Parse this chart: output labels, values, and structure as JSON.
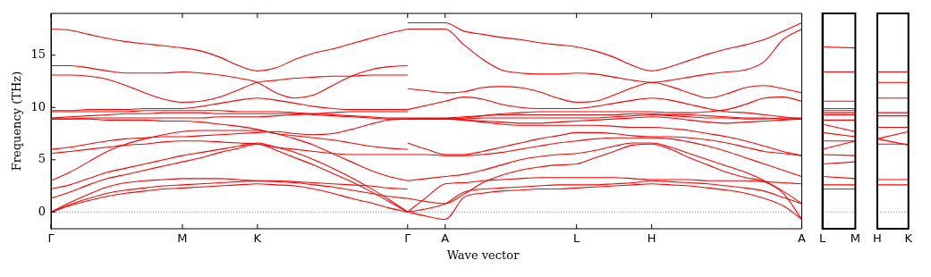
{
  "chart_data": [
    {
      "type": "line",
      "ylabel": "Frequency (THz)",
      "xlabel": "Wave vector",
      "categories": [
        "Γ",
        null,
        null,
        null,
        null,
        null,
        null,
        "M",
        null,
        null,
        null,
        "K",
        null,
        null,
        null,
        null,
        null,
        null,
        null,
        "Γ",
        null,
        "A",
        null,
        null,
        null,
        null,
        null,
        null,
        "L",
        null,
        null,
        null,
        "H",
        null,
        null,
        null,
        null,
        null,
        null,
        null,
        "A"
      ],
      "ylim": [
        -1.6,
        19.0
      ],
      "yticks": [
        0,
        5,
        10,
        15
      ],
      "ref_lines": [
        {
          "axis": "y",
          "value": 0,
          "color": "#5a5aff",
          "line_style": "dotted"
        }
      ],
      "series": [
        {
          "color": "#ff0000",
          "values": [
            0,
            0.6,
            1.1,
            1.5,
            1.8,
            2.0,
            2.2,
            2.3,
            2.4,
            2.5,
            2.6,
            2.7,
            2.6,
            2.5,
            2.2,
            1.8,
            1.3,
            0.9,
            0.4,
            0,
            null,
            null,
            null,
            null,
            null,
            null,
            null,
            null,
            null,
            null,
            null,
            null,
            null,
            null,
            null,
            null,
            null,
            null,
            null,
            null,
            null
          ]
        },
        {
          "color": "#ff0000",
          "values": [
            0,
            0.7,
            1.3,
            1.8,
            2.1,
            2.3,
            2.5,
            2.6,
            2.7,
            2.8,
            2.9,
            3.0,
            2.9,
            2.8,
            2.6,
            2.4,
            2.1,
            1.8,
            1.5,
            1.3,
            null,
            null,
            null,
            null,
            null,
            null,
            null,
            null,
            null,
            null,
            null,
            null,
            null,
            null,
            null,
            null,
            null,
            null,
            null,
            null,
            null
          ]
        },
        {
          "color": "#ff0000",
          "values": [
            0,
            0.9,
            1.7,
            2.4,
            2.8,
            3.0,
            3.1,
            3.2,
            3.2,
            3.2,
            3.1,
            3.0,
            3.0,
            2.9,
            2.8,
            2.7,
            2.6,
            2.5,
            2.3,
            2.2,
            null,
            null,
            null,
            null,
            null,
            null,
            null,
            null,
            null,
            null,
            null,
            null,
            null,
            null,
            null,
            null,
            null,
            null,
            null,
            null,
            null
          ]
        },
        {
          "color": "#ff0000",
          "values": [
            1.3,
            1.9,
            2.6,
            3.2,
            3.6,
            4.0,
            4.4,
            4.8,
            5.2,
            5.7,
            6.1,
            6.5,
            5.9,
            5.2,
            4.5,
            3.7,
            2.9,
            2.0,
            1.0,
            0,
            null,
            null,
            null,
            null,
            null,
            null,
            null,
            null,
            null,
            null,
            null,
            null,
            null,
            null,
            null,
            null,
            null,
            null,
            null,
            null,
            null
          ]
        },
        {
          "color": "#ff0000",
          "values": [
            2.2,
            2.6,
            3.2,
            3.8,
            4.2,
            4.6,
            5.0,
            5.4,
            5.7,
            6.0,
            6.3,
            6.6,
            6.2,
            5.7,
            5.0,
            4.2,
            3.3,
            2.3,
            1.2,
            0,
            null,
            null,
            null,
            null,
            null,
            null,
            null,
            null,
            null,
            null,
            null,
            null,
            null,
            null,
            null,
            null,
            null,
            null,
            null,
            null,
            null
          ]
        },
        {
          "color": "#ff0000",
          "values": [
            3.0,
            3.8,
            4.8,
            5.8,
            6.5,
            7.0,
            7.4,
            7.7,
            7.8,
            7.8,
            7.8,
            7.8,
            7.5,
            7.0,
            6.4,
            5.6,
            4.8,
            4.0,
            3.4,
            3.0,
            null,
            null,
            null,
            null,
            null,
            null,
            null,
            null,
            null,
            null,
            null,
            null,
            null,
            null,
            null,
            null,
            null,
            null,
            null,
            null,
            null
          ]
        },
        {
          "color": "#ff0000",
          "values": [
            5.6,
            5.8,
            6.0,
            6.2,
            6.4,
            6.5,
            6.7,
            6.8,
            6.8,
            6.7,
            6.6,
            6.5,
            6.2,
            6.0,
            5.8,
            5.6,
            5.5,
            5.5,
            5.5,
            5.5,
            null,
            null,
            null,
            null,
            null,
            null,
            null,
            null,
            null,
            null,
            null,
            null,
            null,
            null,
            null,
            null,
            null,
            null,
            null,
            null,
            null
          ]
        },
        {
          "color": "#ff0000",
          "values": [
            6.0,
            6.2,
            6.5,
            6.8,
            7.0,
            7.1,
            7.2,
            7.2,
            7.3,
            7.4,
            7.5,
            7.6,
            7.7,
            7.5,
            7.4,
            7.5,
            7.9,
            8.4,
            8.8,
            8.9,
            null,
            null,
            null,
            null,
            null,
            null,
            null,
            null,
            null,
            null,
            null,
            null,
            null,
            null,
            null,
            null,
            null,
            null,
            null,
            null,
            null
          ]
        },
        {
          "color": "#ff0000",
          "values": [
            8.9,
            8.9,
            8.9,
            8.8,
            8.8,
            8.8,
            8.7,
            8.7,
            8.6,
            8.4,
            8.2,
            7.9,
            7.5,
            7.3,
            7.1,
            6.9,
            6.6,
            6.3,
            6.1,
            6.0,
            null,
            null,
            null,
            null,
            null,
            null,
            null,
            null,
            null,
            null,
            null,
            null,
            null,
            null,
            null,
            null,
            null,
            null,
            null,
            null,
            null
          ]
        },
        {
          "color": "#ff0000",
          "values": [
            8.9,
            8.9,
            9.0,
            9.0,
            9.0,
            9.0,
            9.0,
            9.0,
            9.0,
            9.1,
            9.1,
            9.1,
            9.2,
            9.3,
            9.4,
            9.5,
            9.6,
            9.6,
            9.6,
            9.6,
            null,
            null,
            null,
            null,
            null,
            null,
            null,
            null,
            null,
            null,
            null,
            null,
            null,
            null,
            null,
            null,
            null,
            null,
            null,
            null,
            null
          ]
        },
        {
          "color": "#ff0000",
          "values": [
            9.0,
            9.1,
            9.2,
            9.3,
            9.4,
            9.4,
            9.5,
            9.5,
            9.5,
            9.4,
            9.4,
            9.4,
            9.4,
            9.4,
            9.3,
            9.2,
            9.1,
            9.0,
            8.9,
            8.9,
            null,
            null,
            null,
            null,
            null,
            null,
            null,
            null,
            null,
            null,
            null,
            null,
            null,
            null,
            null,
            null,
            null,
            null,
            null,
            null,
            null
          ]
        },
        {
          "color": "#ff0000",
          "values": [
            9.6,
            9.6,
            9.6,
            9.6,
            9.6,
            9.7,
            9.7,
            9.7,
            9.7,
            9.7,
            9.6,
            9.6,
            9.6,
            9.5,
            9.4,
            9.3,
            9.2,
            9.1,
            9.0,
            9.0,
            null,
            null,
            null,
            null,
            null,
            null,
            null,
            null,
            null,
            null,
            null,
            null,
            null,
            null,
            null,
            null,
            null,
            null,
            null,
            null,
            null
          ]
        },
        {
          "color": "#ff0000",
          "values": [
            9.7,
            9.7,
            9.8,
            9.8,
            9.8,
            9.9,
            9.9,
            9.9,
            10.1,
            10.4,
            10.7,
            10.9,
            10.7,
            10.4,
            10.1,
            9.9,
            9.8,
            9.8,
            9.8,
            9.8,
            null,
            null,
            null,
            null,
            null,
            null,
            null,
            null,
            null,
            null,
            null,
            null,
            null,
            null,
            null,
            null,
            null,
            null,
            null,
            null,
            null
          ]
        },
        {
          "color": "#ff0000",
          "values": [
            13.1,
            13.1,
            13.0,
            12.7,
            12.1,
            11.4,
            10.8,
            10.5,
            10.6,
            11.0,
            11.7,
            12.4,
            12.6,
            12.8,
            12.9,
            13.0,
            13.0,
            13.1,
            13.1,
            13.1,
            null,
            null,
            null,
            null,
            null,
            null,
            null,
            null,
            null,
            null,
            null,
            null,
            null,
            null,
            null,
            null,
            null,
            null,
            null,
            null,
            null
          ]
        },
        {
          "color": "#ff0000",
          "values": [
            14.0,
            14.0,
            13.8,
            13.5,
            13.3,
            13.3,
            13.3,
            13.4,
            13.3,
            13.1,
            12.8,
            12.4,
            11.4,
            10.9,
            11.2,
            12.1,
            13.0,
            13.6,
            13.9,
            14.0,
            null,
            null,
            null,
            null,
            null,
            null,
            null,
            null,
            null,
            null,
            null,
            null,
            null,
            null,
            null,
            null,
            null,
            null,
            null,
            null,
            null
          ]
        },
        {
          "color": "#ff0000",
          "values": [
            17.5,
            17.4,
            17.0,
            16.6,
            16.3,
            16.1,
            15.9,
            15.7,
            15.4,
            14.8,
            14.0,
            13.5,
            13.8,
            14.6,
            15.2,
            15.6,
            16.1,
            16.6,
            17.1,
            17.5,
            null,
            null,
            null,
            null,
            null,
            null,
            null,
            null,
            null,
            null,
            null,
            null,
            null,
            null,
            null,
            null,
            null,
            null,
            null,
            null,
            null
          ]
        },
        {
          "color": "#ff0000",
          "values": [
            null,
            null,
            null,
            null,
            null,
            null,
            null,
            null,
            null,
            null,
            null,
            null,
            null,
            null,
            null,
            null,
            null,
            null,
            null,
            0,
            -0.4,
            -0.7,
            1.4,
            1.8,
            2.0,
            2.1,
            2.2,
            2.2,
            2.3,
            2.4,
            2.5,
            2.6,
            2.7,
            2.6,
            2.5,
            2.3,
            2.1,
            1.8,
            1.3,
            0.6,
            -0.7
          ]
        },
        {
          "color": "#ff0000",
          "values": [
            null,
            null,
            null,
            null,
            null,
            null,
            null,
            null,
            null,
            null,
            null,
            null,
            null,
            null,
            null,
            null,
            null,
            null,
            null,
            0,
            0.3,
            0.8,
            1.9,
            2.2,
            2.3,
            2.4,
            2.5,
            2.6,
            2.6,
            2.6,
            2.7,
            2.8,
            3.0,
            2.9,
            2.8,
            2.7,
            2.5,
            2.3,
            2.0,
            1.4,
            0.8
          ]
        },
        {
          "color": "#ff0000",
          "values": [
            null,
            null,
            null,
            null,
            null,
            null,
            null,
            null,
            null,
            null,
            null,
            null,
            null,
            null,
            null,
            null,
            null,
            null,
            null,
            0,
            1.4,
            2.7,
            2.8,
            3.0,
            3.1,
            3.2,
            3.3,
            3.3,
            3.3,
            3.3,
            3.3,
            3.2,
            3.1,
            3.1,
            3.1,
            3.0,
            3.0,
            3.0,
            2.9,
            2.8,
            2.7
          ]
        },
        {
          "color": "#ff0000",
          "values": [
            null,
            null,
            null,
            null,
            null,
            null,
            null,
            null,
            null,
            null,
            null,
            null,
            null,
            null,
            null,
            null,
            null,
            null,
            null,
            1.3,
            1.0,
            0.8,
            1.7,
            2.8,
            3.5,
            4.0,
            4.3,
            4.5,
            4.6,
            5.2,
            5.8,
            6.4,
            6.5,
            6.0,
            5.2,
            4.5,
            3.8,
            3.3,
            2.9,
            1.8,
            -0.7
          ]
        },
        {
          "color": "#ff0000",
          "values": [
            null,
            null,
            null,
            null,
            null,
            null,
            null,
            null,
            null,
            null,
            null,
            null,
            null,
            null,
            null,
            null,
            null,
            null,
            null,
            3.0,
            3.2,
            3.4,
            3.6,
            4.0,
            4.5,
            5.0,
            5.3,
            5.5,
            5.6,
            5.9,
            6.3,
            6.6,
            6.6,
            6.2,
            5.6,
            5.0,
            4.4,
            3.8,
            3.0,
            2.0,
            0.8
          ]
        },
        {
          "color": "#ff0000",
          "values": [
            null,
            null,
            null,
            null,
            null,
            null,
            null,
            null,
            null,
            null,
            null,
            null,
            null,
            null,
            null,
            null,
            null,
            null,
            null,
            5.5,
            5.5,
            5.4,
            5.4,
            5.5,
            5.7,
            6.0,
            6.3,
            6.6,
            6.8,
            7.0,
            7.1,
            7.1,
            7.1,
            7.0,
            6.7,
            6.3,
            5.8,
            5.2,
            4.6,
            4.0,
            3.4
          ]
        },
        {
          "color": "#ff0000",
          "values": [
            null,
            null,
            null,
            null,
            null,
            null,
            null,
            null,
            null,
            null,
            null,
            null,
            null,
            null,
            null,
            null,
            null,
            null,
            null,
            6.6,
            6.0,
            5.5,
            5.5,
            5.8,
            6.2,
            6.6,
            7.0,
            7.3,
            7.6,
            7.6,
            7.5,
            7.3,
            7.2,
            7.2,
            7.1,
            6.9,
            6.6,
            6.2,
            5.8,
            5.6,
            5.4
          ]
        },
        {
          "color": "#ff0000",
          "values": [
            null,
            null,
            null,
            null,
            null,
            null,
            null,
            null,
            null,
            null,
            null,
            null,
            null,
            null,
            null,
            null,
            null,
            null,
            null,
            8.9,
            8.9,
            8.9,
            8.8,
            8.6,
            8.4,
            8.3,
            8.3,
            8.3,
            8.3,
            8.3,
            8.2,
            8.1,
            8.1,
            8.0,
            7.8,
            7.5,
            7.2,
            6.8,
            6.3,
            5.8,
            5.4
          ]
        },
        {
          "color": "#ff0000",
          "values": [
            null,
            null,
            null,
            null,
            null,
            null,
            null,
            null,
            null,
            null,
            null,
            null,
            null,
            null,
            null,
            null,
            null,
            null,
            null,
            8.9,
            8.9,
            8.9,
            8.8,
            8.7,
            8.6,
            8.5,
            8.5,
            8.6,
            8.7,
            8.8,
            8.9,
            null,
            null,
            null,
            null,
            null,
            null,
            null,
            null,
            null,
            null
          ]
        },
        {
          "color": "#ff0000",
          "values": [
            null,
            null,
            null,
            null,
            null,
            null,
            null,
            null,
            null,
            null,
            null,
            null,
            null,
            null,
            null,
            null,
            null,
            null,
            null,
            null,
            null,
            null,
            null,
            null,
            null,
            null,
            null,
            null,
            null,
            null,
            8.9,
            9.0,
            9.1,
            9.0,
            8.8,
            8.6,
            8.5,
            8.6,
            8.7,
            8.8,
            8.9
          ]
        },
        {
          "color": "#ff0000",
          "values": [
            null,
            null,
            null,
            null,
            null,
            null,
            null,
            null,
            null,
            null,
            null,
            null,
            null,
            null,
            null,
            null,
            null,
            null,
            null,
            8.9,
            8.9,
            8.9,
            8.9,
            9.0,
            9.0,
            9.0,
            9.0,
            9.0,
            9.0,
            9.0,
            9.1,
            9.2,
            9.3,
            9.2,
            9.1,
            9.0,
            9.0,
            8.9,
            8.9,
            9.0,
            9.0
          ]
        },
        {
          "color": "#ff0000",
          "values": [
            null,
            null,
            null,
            null,
            null,
            null,
            null,
            null,
            null,
            null,
            null,
            null,
            null,
            null,
            null,
            null,
            null,
            null,
            null,
            8.9,
            8.9,
            8.9,
            9.0,
            9.2,
            9.4,
            9.5,
            9.6,
            9.6,
            9.6,
            9.6,
            9.6,
            9.6,
            9.6,
            9.5,
            9.5,
            9.6,
            9.8,
            10.3,
            10.9,
            11.0,
            10.6
          ]
        },
        {
          "color": "#ff0000",
          "values": [
            null,
            null,
            null,
            null,
            null,
            null,
            null,
            null,
            null,
            null,
            null,
            null,
            null,
            null,
            null,
            null,
            null,
            null,
            null,
            9.0,
            9.0,
            9.0,
            9.1,
            9.2,
            9.3,
            9.3,
            9.3,
            9.3,
            9.3,
            9.3,
            9.3,
            9.4,
            9.4,
            9.3,
            9.3,
            9.2,
            null,
            null,
            null,
            null,
            null
          ]
        },
        {
          "color": "#ff0000",
          "values": [
            null,
            null,
            null,
            null,
            null,
            null,
            null,
            null,
            null,
            null,
            null,
            null,
            null,
            null,
            null,
            null,
            null,
            null,
            null,
            null,
            null,
            null,
            null,
            null,
            null,
            null,
            null,
            null,
            null,
            null,
            null,
            null,
            null,
            null,
            null,
            9.2,
            9.1,
            9.0,
            9.0,
            8.9,
            8.9
          ]
        },
        {
          "color": "#ff0000",
          "values": [
            null,
            null,
            null,
            null,
            null,
            null,
            null,
            null,
            null,
            null,
            null,
            null,
            null,
            null,
            null,
            null,
            null,
            null,
            null,
            9.8,
            10.2,
            10.6,
            11.0,
            10.8,
            10.3,
            10.0,
            9.9,
            9.9,
            9.9,
            10.1,
            10.4,
            10.7,
            10.9,
            10.7,
            10.3,
            9.9,
            9.6,
            9.5,
            9.3,
            9.1,
            8.9
          ]
        },
        {
          "color": "#ff0000",
          "values": [
            null,
            null,
            null,
            null,
            null,
            null,
            null,
            null,
            null,
            null,
            null,
            null,
            null,
            null,
            null,
            null,
            null,
            null,
            null,
            11.8,
            11.6,
            11.4,
            11.5,
            11.9,
            12.0,
            11.9,
            11.5,
            10.9,
            10.5,
            10.6,
            11.2,
            11.9,
            12.4,
            12.0,
            11.4,
            10.9,
            11.3,
            11.9,
            12.1,
            11.8,
            11.4
          ]
        },
        {
          "color": "#ff0000",
          "values": [
            null,
            null,
            null,
            null,
            null,
            null,
            null,
            null,
            null,
            null,
            null,
            null,
            null,
            null,
            null,
            null,
            null,
            null,
            null,
            17.5,
            17.5,
            17.5,
            16.0,
            14.6,
            13.6,
            13.3,
            13.2,
            13.2,
            13.3,
            13.2,
            12.9,
            12.6,
            12.4,
            12.6,
            12.9,
            13.2,
            13.4,
            13.6,
            14.4,
            16.5,
            17.5
          ]
        },
        {
          "color": "#ff0000",
          "values": [
            null,
            null,
            null,
            null,
            null,
            null,
            null,
            null,
            null,
            null,
            null,
            null,
            null,
            null,
            null,
            null,
            null,
            null,
            null,
            18.1,
            18.1,
            18.1,
            17.3,
            17.0,
            16.7,
            16.5,
            16.2,
            16.0,
            15.8,
            15.4,
            14.8,
            14.0,
            13.5,
            13.9,
            14.5,
            15.1,
            15.6,
            16.0,
            16.5,
            17.3,
            18.1
          ]
        }
      ]
    },
    {
      "type": "line",
      "categories": [
        "L",
        "M"
      ],
      "ylim": [
        -1.6,
        19.0
      ],
      "yticks": [
        0,
        5,
        10,
        15
      ],
      "tick_labels": "x",
      "ref_lines": [
        {
          "axis": "y",
          "value": 0,
          "color": "#5a5aff",
          "line_style": "dotted"
        }
      ],
      "series": [
        {
          "color": "#ff0000",
          "values": [
            15.8,
            15.7
          ]
        },
        {
          "color": "#ff0000",
          "values": [
            13.4,
            13.4
          ]
        },
        {
          "color": "#ff0000",
          "values": [
            10.6,
            10.6
          ]
        },
        {
          "color": "#ff0000",
          "values": [
            9.9,
            9.9
          ]
        },
        {
          "color": "#ff0000",
          "values": [
            9.7,
            9.7
          ]
        },
        {
          "color": "#ff0000",
          "values": [
            9.5,
            9.5
          ]
        },
        {
          "color": "#ff0000",
          "values": [
            9.3,
            9.3
          ]
        },
        {
          "color": "#ff0000",
          "values": [
            8.8,
            8.8
          ]
        },
        {
          "color": "#ff0000",
          "values": [
            8.4,
            7.7
          ]
        },
        {
          "color": "#ff0000",
          "values": [
            7.6,
            7.2
          ]
        },
        {
          "color": "#ff0000",
          "values": [
            6.8,
            6.8
          ]
        },
        {
          "color": "#ff0000",
          "values": [
            6.0,
            6.8
          ]
        },
        {
          "color": "#ff0000",
          "values": [
            5.5,
            5.4
          ]
        },
        {
          "color": "#ff0000",
          "values": [
            4.6,
            4.8
          ]
        },
        {
          "color": "#ff0000",
          "values": [
            3.4,
            3.2
          ]
        },
        {
          "color": "#ff0000",
          "values": [
            2.6,
            2.6
          ]
        },
        {
          "color": "#ff0000",
          "values": [
            2.2,
            2.2
          ]
        }
      ]
    },
    {
      "type": "line",
      "categories": [
        "H",
        "K"
      ],
      "ylim": [
        -1.6,
        19.0
      ],
      "yticks": [
        0,
        5,
        10,
        15
      ],
      "tick_labels": "x",
      "ref_lines": [
        {
          "axis": "y",
          "value": 0,
          "color": "#5a5aff",
          "line_style": "dotted"
        }
      ],
      "series": [
        {
          "color": "#ff0000",
          "values": [
            13.4,
            13.4
          ]
        },
        {
          "color": "#ff0000",
          "values": [
            12.4,
            12.4
          ]
        },
        {
          "color": "#ff0000",
          "values": [
            10.9,
            10.9
          ]
        },
        {
          "color": "#ff0000",
          "values": [
            9.5,
            9.5
          ]
        },
        {
          "color": "#ff0000",
          "values": [
            9.2,
            9.2
          ]
        },
        {
          "color": "#ff0000",
          "values": [
            8.1,
            8.1
          ]
        },
        {
          "color": "#ff0000",
          "values": [
            7.0,
            7.7
          ]
        },
        {
          "color": "#ff0000",
          "values": [
            7.0,
            6.4
          ]
        },
        {
          "color": "#ff0000",
          "values": [
            6.5,
            6.5
          ]
        },
        {
          "color": "#ff0000",
          "values": [
            3.1,
            3.1
          ]
        },
        {
          "color": "#ff0000",
          "values": [
            2.6,
            2.6
          ]
        }
      ]
    }
  ]
}
